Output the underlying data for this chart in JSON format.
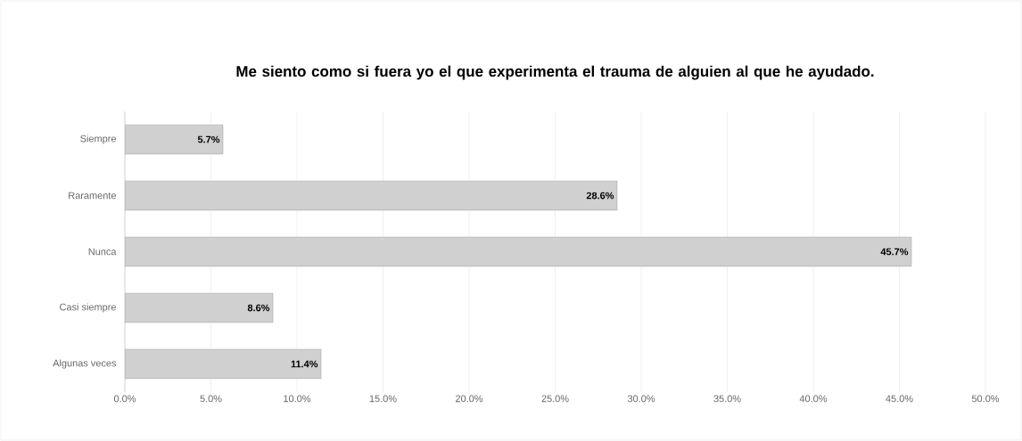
{
  "chart_data": {
    "type": "bar",
    "orientation": "horizontal",
    "title": "Me siento como si fuera yo el que experimenta el trauma de alguien al que he ayudado.",
    "categories": [
      "Siempre",
      "Raramente",
      "Nunca",
      "Casi siempre",
      "Algunas veces"
    ],
    "values": [
      5.7,
      28.6,
      45.7,
      8.6,
      11.4
    ],
    "value_labels": [
      "5.7%",
      "28.6%",
      "45.7%",
      "8.6%",
      "11.4%"
    ],
    "color": "#d0d0d0",
    "xlim": [
      0,
      50
    ],
    "xticks": [
      {
        "value": 0,
        "label": "0.0%"
      },
      {
        "value": 5,
        "label": "5.0%"
      },
      {
        "value": 10,
        "label": "10.0%"
      },
      {
        "value": 15,
        "label": "15.0%"
      },
      {
        "value": 20,
        "label": "20.0%"
      },
      {
        "value": 25,
        "label": "25.0%"
      },
      {
        "value": 30,
        "label": "30.0%"
      },
      {
        "value": 35,
        "label": "35.0%"
      },
      {
        "value": 40,
        "label": "40.0%"
      },
      {
        "value": 45,
        "label": "45.0%"
      },
      {
        "value": 50,
        "label": "50.0%"
      }
    ],
    "grid": "x"
  }
}
